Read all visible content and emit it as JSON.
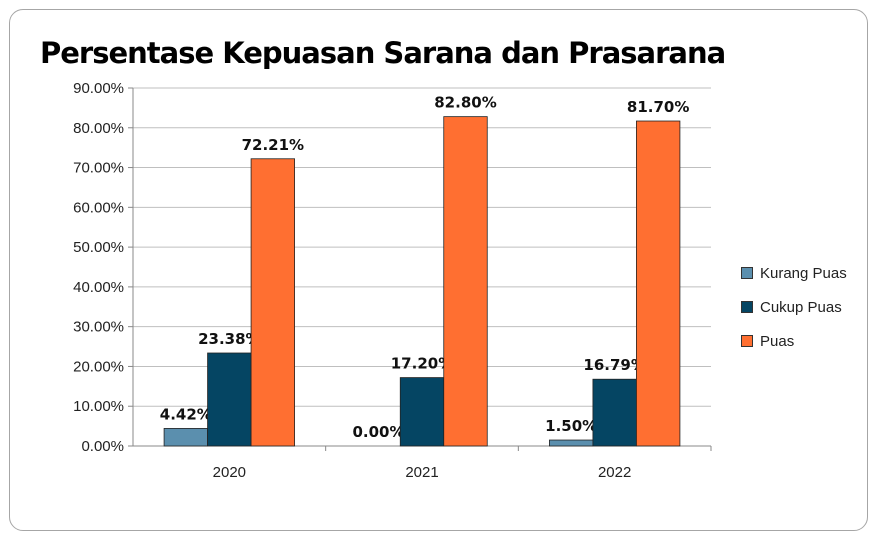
{
  "chart_data": {
    "type": "bar",
    "title": "Persentase Kepuasan Sarana dan Prasarana",
    "xlabel": "",
    "ylabel": "",
    "ylim": [
      0,
      90
    ],
    "yticks": [
      "0.00%",
      "10.00%",
      "20.00%",
      "30.00%",
      "40.00%",
      "50.00%",
      "60.00%",
      "70.00%",
      "80.00%",
      "90.00%"
    ],
    "categories": [
      "2020",
      "2021",
      "2022"
    ],
    "grid": true,
    "legend_position": "right",
    "series": [
      {
        "name": "Kurang Puas",
        "color": "#5b8fae",
        "values": [
          4.42,
          0.0,
          1.5
        ],
        "labels": [
          "4.42%",
          "0.00%",
          "1.50%"
        ]
      },
      {
        "name": "Cukup Puas",
        "color": "#054563",
        "values": [
          23.38,
          17.2,
          16.79
        ],
        "labels": [
          "23.38%",
          "17.20%",
          "16.79%"
        ]
      },
      {
        "name": "Puas",
        "color": "#ff6f31",
        "values": [
          72.21,
          82.8,
          81.7
        ],
        "labels": [
          "72.21%",
          "82.80%",
          "81.70%"
        ]
      }
    ]
  }
}
